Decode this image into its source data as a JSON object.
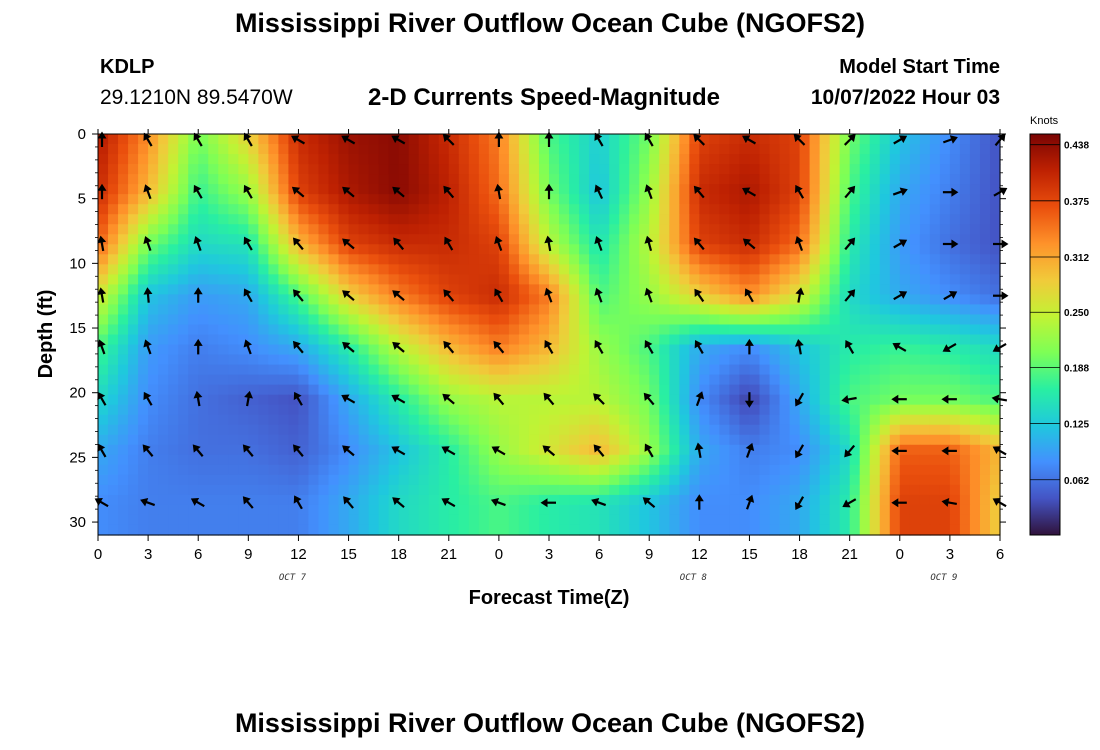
{
  "header": {
    "title": "Mississippi River Outflow Ocean Cube (NGOFS2)",
    "station_id": "KDLP",
    "station_coords": "29.1210N  89.5470W",
    "subtitle": "2-D Currents Speed-Magnitude",
    "model_label": "Model Start Time",
    "model_time": "10/07/2022 Hour 03"
  },
  "footer": {
    "title": "Mississippi River Outflow Ocean Cube (NGOFS2)"
  },
  "chart_data": {
    "type": "heatmap",
    "xlabel": "Forecast Time(Z)",
    "ylabel": "Depth (ft)",
    "colorbar_label": "Knots",
    "x_tick_labels": [
      "0",
      "3",
      "6",
      "9",
      "12",
      "15",
      "18",
      "21",
      "0",
      "3",
      "6",
      "9",
      "12",
      "15",
      "18",
      "21",
      "0",
      "3",
      "6"
    ],
    "day_labels": [
      {
        "label": "OCT 7",
        "x_index": 4
      },
      {
        "label": "OCT 8",
        "x_index": 12
      },
      {
        "label": "OCT 9",
        "x_index": 17
      }
    ],
    "y_ticks": [
      0,
      5,
      10,
      15,
      20,
      25,
      30
    ],
    "ylim": [
      0,
      31
    ],
    "colorbar_ticks": [
      "0.438",
      "0.375",
      "0.312",
      "0.250",
      "0.188",
      "0.125",
      "0.062"
    ],
    "value_range": [
      0.0,
      0.45
    ],
    "colormap": [
      "#30123b",
      "#4454c4",
      "#4390fe",
      "#1fc8de",
      "#29efa2",
      "#7dff56",
      "#c1f334",
      "#f1ca3a",
      "#fe922a",
      "#ea4f0d",
      "#be2102",
      "#7a0403"
    ],
    "grid_times_index": [
      0,
      1,
      2,
      3,
      4,
      5,
      6,
      7,
      8,
      9,
      10,
      11,
      12,
      13,
      14,
      15,
      16,
      17,
      18
    ],
    "grid_depths": [
      0,
      4.5,
      8.5,
      12.5,
      16.5,
      20.5,
      24.5,
      28.5
    ],
    "speed_grid": [
      [
        0.42,
        0.33,
        0.2,
        0.28,
        0.4,
        0.43,
        0.44,
        0.4,
        0.34,
        0.18,
        0.13,
        0.2,
        0.38,
        0.4,
        0.38,
        0.2,
        0.12,
        0.08,
        0.04
      ],
      [
        0.4,
        0.3,
        0.17,
        0.22,
        0.38,
        0.42,
        0.44,
        0.41,
        0.35,
        0.2,
        0.12,
        0.22,
        0.4,
        0.42,
        0.38,
        0.18,
        0.1,
        0.07,
        0.04
      ],
      [
        0.36,
        0.2,
        0.14,
        0.15,
        0.3,
        0.38,
        0.4,
        0.4,
        0.38,
        0.24,
        0.15,
        0.24,
        0.38,
        0.4,
        0.35,
        0.16,
        0.09,
        0.06,
        0.04
      ],
      [
        0.26,
        0.12,
        0.09,
        0.1,
        0.18,
        0.28,
        0.34,
        0.38,
        0.4,
        0.34,
        0.18,
        0.22,
        0.28,
        0.33,
        0.26,
        0.14,
        0.1,
        0.08,
        0.06
      ],
      [
        0.18,
        0.09,
        0.07,
        0.08,
        0.1,
        0.16,
        0.24,
        0.3,
        0.34,
        0.3,
        0.22,
        0.18,
        0.1,
        0.08,
        0.12,
        0.16,
        0.17,
        0.16,
        0.14
      ],
      [
        0.14,
        0.08,
        0.06,
        0.05,
        0.04,
        0.1,
        0.16,
        0.22,
        0.24,
        0.24,
        0.24,
        0.2,
        0.08,
        0.03,
        0.1,
        0.18,
        0.2,
        0.2,
        0.18
      ],
      [
        0.1,
        0.07,
        0.06,
        0.06,
        0.05,
        0.08,
        0.12,
        0.16,
        0.22,
        0.26,
        0.3,
        0.22,
        0.1,
        0.07,
        0.08,
        0.14,
        0.36,
        0.36,
        0.3
      ],
      [
        0.08,
        0.07,
        0.07,
        0.07,
        0.07,
        0.1,
        0.14,
        0.16,
        0.18,
        0.16,
        0.15,
        0.12,
        0.08,
        0.08,
        0.1,
        0.16,
        0.38,
        0.38,
        0.28
      ]
    ],
    "direction_grid_deg": [
      [
        180,
        150,
        150,
        150,
        120,
        120,
        120,
        135,
        180,
        180,
        150,
        150,
        135,
        120,
        135,
        225,
        240,
        250,
        220
      ],
      [
        180,
        160,
        150,
        150,
        130,
        130,
        130,
        140,
        170,
        180,
        155,
        160,
        140,
        120,
        150,
        220,
        250,
        270,
        240
      ],
      [
        170,
        160,
        160,
        150,
        140,
        130,
        140,
        150,
        160,
        170,
        160,
        165,
        140,
        130,
        160,
        220,
        240,
        270,
        270
      ],
      [
        170,
        175,
        180,
        150,
        140,
        130,
        130,
        140,
        150,
        160,
        160,
        160,
        145,
        150,
        190,
        220,
        240,
        240,
        270
      ],
      [
        160,
        160,
        180,
        160,
        140,
        130,
        130,
        140,
        140,
        150,
        150,
        150,
        150,
        180,
        170,
        150,
        120,
        60,
        60
      ],
      [
        150,
        150,
        170,
        190,
        150,
        120,
        120,
        130,
        140,
        140,
        135,
        140,
        200,
        0,
        30,
        80,
        90,
        90,
        100
      ],
      [
        150,
        140,
        140,
        140,
        140,
        130,
        120,
        120,
        120,
        130,
        140,
        150,
        170,
        200,
        30,
        40,
        90,
        90,
        120
      ],
      [
        120,
        110,
        120,
        140,
        150,
        140,
        130,
        120,
        110,
        90,
        110,
        130,
        180,
        200,
        30,
        60,
        90,
        100,
        120
      ]
    ]
  }
}
